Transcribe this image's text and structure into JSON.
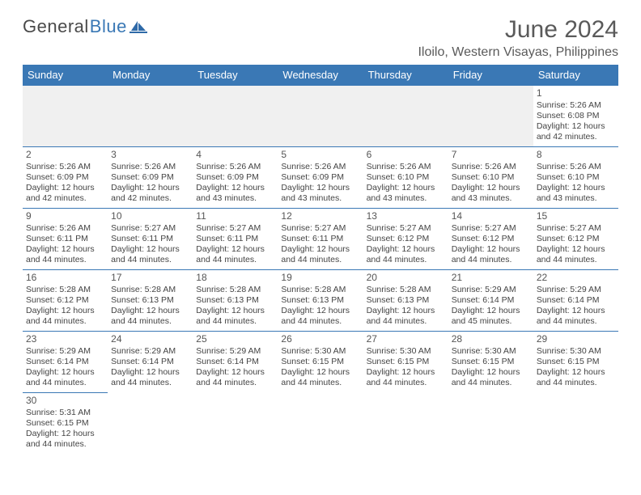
{
  "logo": {
    "text_general": "General",
    "text_blue": "Blue"
  },
  "title": "June 2024",
  "location": "Iloilo, Western Visayas, Philippines",
  "colors": {
    "header_bg": "#3a78b5",
    "header_text": "#ffffff",
    "cell_border": "#3a78b5",
    "empty_bg": "#f0f0f0",
    "page_bg": "#ffffff",
    "title_color": "#5a5a5a",
    "text_color": "#444444"
  },
  "typography": {
    "title_fontsize": 30,
    "location_fontsize": 16,
    "dayheader_fontsize": 13,
    "daynum_fontsize": 12,
    "cell_fontsize": 10.5
  },
  "day_headers": [
    "Sunday",
    "Monday",
    "Tuesday",
    "Wednesday",
    "Thursday",
    "Friday",
    "Saturday"
  ],
  "labels": {
    "sunrise": "Sunrise:",
    "sunset": "Sunset:",
    "daylight": "Daylight:"
  },
  "weeks": [
    [
      null,
      null,
      null,
      null,
      null,
      null,
      {
        "n": "1",
        "sunrise": "5:26 AM",
        "sunset": "6:08 PM",
        "daylight": "12 hours and 42 minutes."
      }
    ],
    [
      {
        "n": "2",
        "sunrise": "5:26 AM",
        "sunset": "6:09 PM",
        "daylight": "12 hours and 42 minutes."
      },
      {
        "n": "3",
        "sunrise": "5:26 AM",
        "sunset": "6:09 PM",
        "daylight": "12 hours and 42 minutes."
      },
      {
        "n": "4",
        "sunrise": "5:26 AM",
        "sunset": "6:09 PM",
        "daylight": "12 hours and 43 minutes."
      },
      {
        "n": "5",
        "sunrise": "5:26 AM",
        "sunset": "6:09 PM",
        "daylight": "12 hours and 43 minutes."
      },
      {
        "n": "6",
        "sunrise": "5:26 AM",
        "sunset": "6:10 PM",
        "daylight": "12 hours and 43 minutes."
      },
      {
        "n": "7",
        "sunrise": "5:26 AM",
        "sunset": "6:10 PM",
        "daylight": "12 hours and 43 minutes."
      },
      {
        "n": "8",
        "sunrise": "5:26 AM",
        "sunset": "6:10 PM",
        "daylight": "12 hours and 43 minutes."
      }
    ],
    [
      {
        "n": "9",
        "sunrise": "5:26 AM",
        "sunset": "6:11 PM",
        "daylight": "12 hours and 44 minutes."
      },
      {
        "n": "10",
        "sunrise": "5:27 AM",
        "sunset": "6:11 PM",
        "daylight": "12 hours and 44 minutes."
      },
      {
        "n": "11",
        "sunrise": "5:27 AM",
        "sunset": "6:11 PM",
        "daylight": "12 hours and 44 minutes."
      },
      {
        "n": "12",
        "sunrise": "5:27 AM",
        "sunset": "6:11 PM",
        "daylight": "12 hours and 44 minutes."
      },
      {
        "n": "13",
        "sunrise": "5:27 AM",
        "sunset": "6:12 PM",
        "daylight": "12 hours and 44 minutes."
      },
      {
        "n": "14",
        "sunrise": "5:27 AM",
        "sunset": "6:12 PM",
        "daylight": "12 hours and 44 minutes."
      },
      {
        "n": "15",
        "sunrise": "5:27 AM",
        "sunset": "6:12 PM",
        "daylight": "12 hours and 44 minutes."
      }
    ],
    [
      {
        "n": "16",
        "sunrise": "5:28 AM",
        "sunset": "6:12 PM",
        "daylight": "12 hours and 44 minutes."
      },
      {
        "n": "17",
        "sunrise": "5:28 AM",
        "sunset": "6:13 PM",
        "daylight": "12 hours and 44 minutes."
      },
      {
        "n": "18",
        "sunrise": "5:28 AM",
        "sunset": "6:13 PM",
        "daylight": "12 hours and 44 minutes."
      },
      {
        "n": "19",
        "sunrise": "5:28 AM",
        "sunset": "6:13 PM",
        "daylight": "12 hours and 44 minutes."
      },
      {
        "n": "20",
        "sunrise": "5:28 AM",
        "sunset": "6:13 PM",
        "daylight": "12 hours and 44 minutes."
      },
      {
        "n": "21",
        "sunrise": "5:29 AM",
        "sunset": "6:14 PM",
        "daylight": "12 hours and 45 minutes."
      },
      {
        "n": "22",
        "sunrise": "5:29 AM",
        "sunset": "6:14 PM",
        "daylight": "12 hours and 44 minutes."
      }
    ],
    [
      {
        "n": "23",
        "sunrise": "5:29 AM",
        "sunset": "6:14 PM",
        "daylight": "12 hours and 44 minutes."
      },
      {
        "n": "24",
        "sunrise": "5:29 AM",
        "sunset": "6:14 PM",
        "daylight": "12 hours and 44 minutes."
      },
      {
        "n": "25",
        "sunrise": "5:29 AM",
        "sunset": "6:14 PM",
        "daylight": "12 hours and 44 minutes."
      },
      {
        "n": "26",
        "sunrise": "5:30 AM",
        "sunset": "6:15 PM",
        "daylight": "12 hours and 44 minutes."
      },
      {
        "n": "27",
        "sunrise": "5:30 AM",
        "sunset": "6:15 PM",
        "daylight": "12 hours and 44 minutes."
      },
      {
        "n": "28",
        "sunrise": "5:30 AM",
        "sunset": "6:15 PM",
        "daylight": "12 hours and 44 minutes."
      },
      {
        "n": "29",
        "sunrise": "5:30 AM",
        "sunset": "6:15 PM",
        "daylight": "12 hours and 44 minutes."
      }
    ],
    [
      {
        "n": "30",
        "sunrise": "5:31 AM",
        "sunset": "6:15 PM",
        "daylight": "12 hours and 44 minutes."
      },
      null,
      null,
      null,
      null,
      null,
      null
    ]
  ]
}
